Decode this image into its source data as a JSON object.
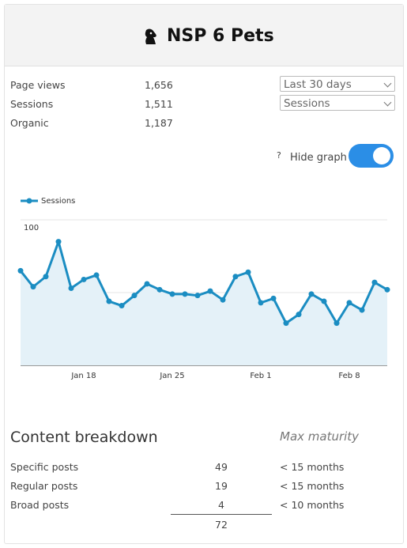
{
  "header": {
    "title": "NSP 6 Pets"
  },
  "stats": [
    {
      "label": "Page views",
      "value": "1,656"
    },
    {
      "label": "Sessions",
      "value": "1,511"
    },
    {
      "label": "Organic",
      "value": "1,187"
    }
  ],
  "controls": {
    "range": "Last 30 days",
    "metric": "Sessions",
    "help": "?",
    "toggle_label": "Hide graph"
  },
  "chart_data": {
    "type": "line",
    "categories": [
      null,
      null,
      null,
      null,
      null,
      "Jan 18",
      null,
      null,
      null,
      null,
      null,
      null,
      "Jan 25",
      null,
      null,
      null,
      null,
      null,
      null,
      "Feb 1",
      null,
      null,
      null,
      null,
      null,
      null,
      "Feb 8",
      null,
      null,
      null
    ],
    "series": [
      {
        "name": "Sessions",
        "color": "#1b8dc2",
        "values": [
          65,
          54,
          61,
          85,
          53,
          59,
          62,
          44,
          41,
          48,
          56,
          52,
          49,
          49,
          48,
          51,
          45,
          61,
          64,
          43,
          46,
          29,
          35,
          49,
          44,
          29,
          43,
          38,
          57,
          52
        ]
      }
    ],
    "ylim": [
      0,
      100
    ],
    "yticks": [
      50,
      100
    ],
    "grid": true,
    "area_color": "#e4f1f8"
  },
  "breakdown": {
    "title": "Content breakdown",
    "maturity_header": "Max maturity",
    "rows": [
      [
        "Specific posts",
        49,
        "< 15 months"
      ],
      [
        "Regular posts",
        19,
        "< 15 months"
      ],
      [
        "Broad posts",
        4,
        "< 10 months"
      ]
    ],
    "total": 72
  }
}
